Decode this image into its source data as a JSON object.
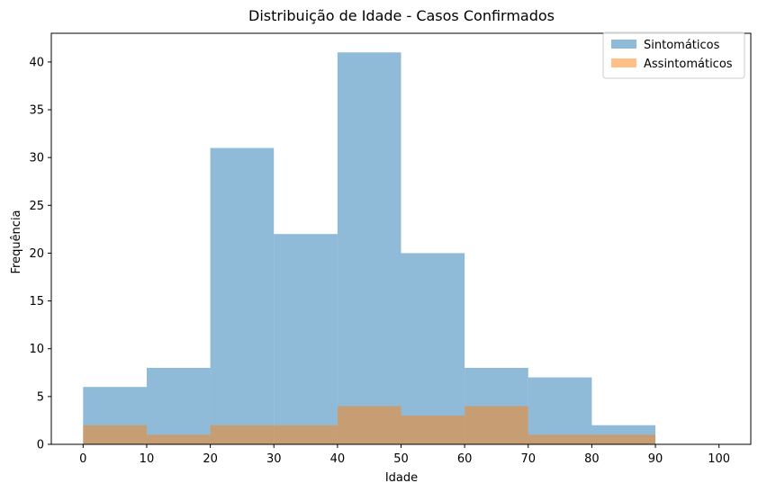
{
  "chart_data": {
    "type": "bar",
    "title": "Distribuição de Idade - Casos Confirmados",
    "xlabel": "Idade",
    "ylabel": "Frequência",
    "xlim": [
      -5,
      105
    ],
    "ylim": [
      0,
      43
    ],
    "xticks": [
      0,
      10,
      20,
      30,
      40,
      50,
      60,
      70,
      80,
      90,
      100
    ],
    "yticks": [
      0,
      5,
      10,
      15,
      20,
      25,
      30,
      35,
      40
    ],
    "bin_edges": [
      0,
      10,
      20,
      30,
      40,
      50,
      60,
      70,
      80,
      90,
      100
    ],
    "grid": false,
    "legend_position": "top-right",
    "series": [
      {
        "name": "Sintomáticos",
        "color": "#1f77b4",
        "opacity": 0.5,
        "values": [
          6,
          8,
          31,
          22,
          41,
          20,
          8,
          7,
          2,
          0
        ]
      },
      {
        "name": "Assintomáticos",
        "color": "#ff7f0e",
        "opacity": 0.5,
        "values": [
          2,
          1,
          2,
          2,
          4,
          3,
          4,
          1,
          1,
          0
        ]
      }
    ]
  }
}
